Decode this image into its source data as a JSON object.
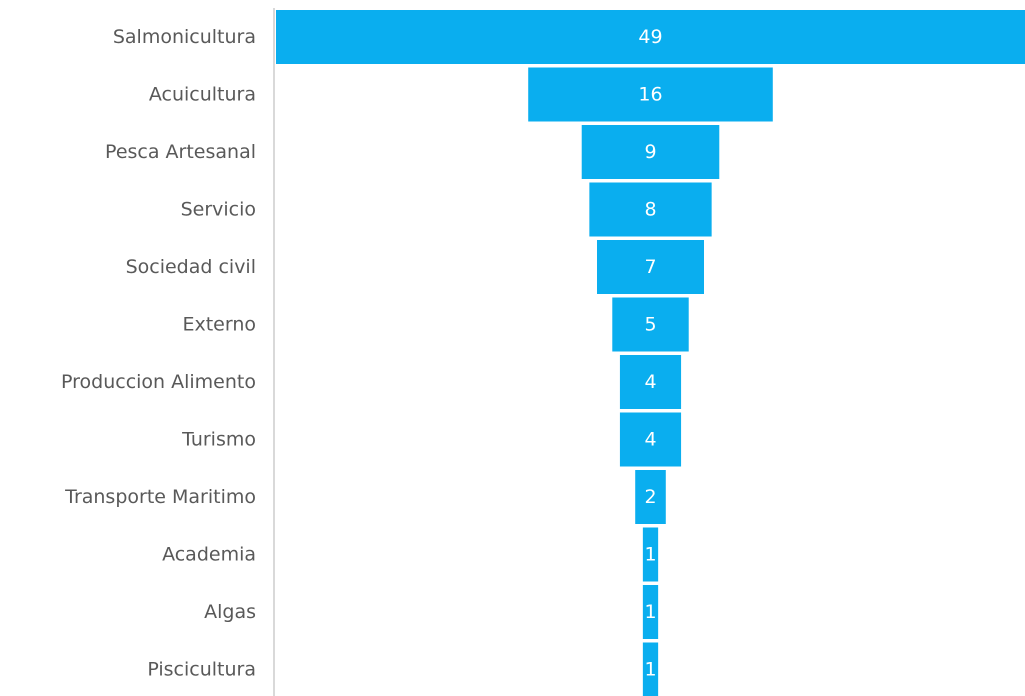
{
  "chart_data": {
    "type": "funnel",
    "title": "",
    "xlabel": "",
    "ylabel": "",
    "categories": [
      "Salmonicultura",
      "Acuicultura",
      "Pesca Artesanal",
      "Servicio",
      "Sociedad civil",
      "Externo",
      "Produccion Alimento",
      "Turismo",
      "Transporte Maritimo",
      "Academia",
      "Algas",
      "Piscicultura"
    ],
    "values": [
      49,
      16,
      9,
      8,
      7,
      5,
      4,
      4,
      2,
      1,
      1,
      1
    ],
    "bar_color": "#0AAEEF",
    "label_color": "#595959",
    "value_label_color": "#FFFFFF",
    "axis_color": "#D9D9D9"
  }
}
